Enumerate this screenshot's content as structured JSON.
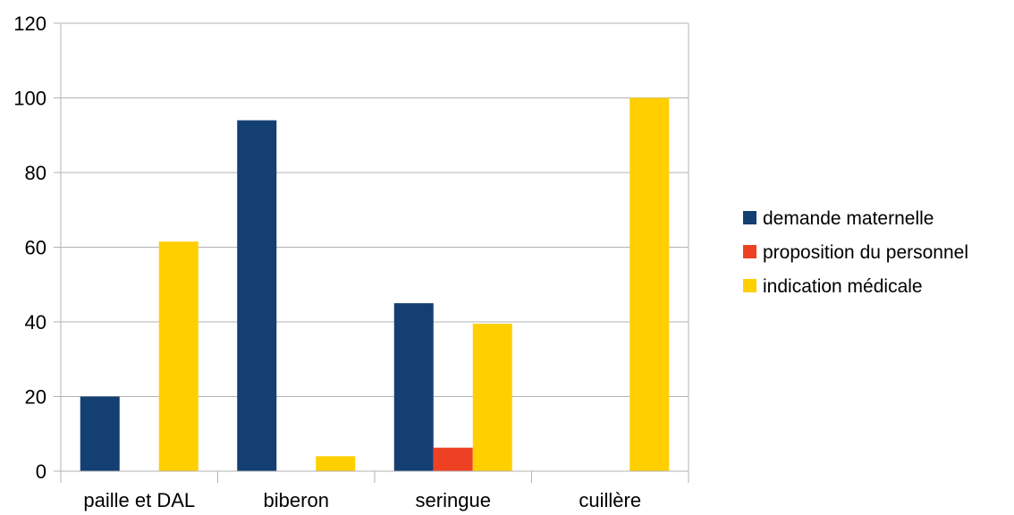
{
  "chart_data": {
    "type": "bar",
    "title": "",
    "xlabel": "",
    "ylabel": "",
    "categories": [
      "paille et DAL",
      "biberon",
      "seringue",
      "cuillère"
    ],
    "series": [
      {
        "name": "demande maternelle",
        "color": "#133f73",
        "values": [
          20,
          94,
          45,
          0
        ]
      },
      {
        "name": "proposition du personnel",
        "color": "#ee4124",
        "values": [
          0,
          0,
          6.3,
          0
        ]
      },
      {
        "name": "indication médicale",
        "color": "#ffcf00",
        "values": [
          61.5,
          4,
          39.5,
          100
        ]
      }
    ],
    "ylim": [
      0,
      120
    ],
    "yticks": [
      0,
      20,
      40,
      60,
      80,
      100,
      120
    ],
    "grid": true,
    "legend": "right"
  }
}
